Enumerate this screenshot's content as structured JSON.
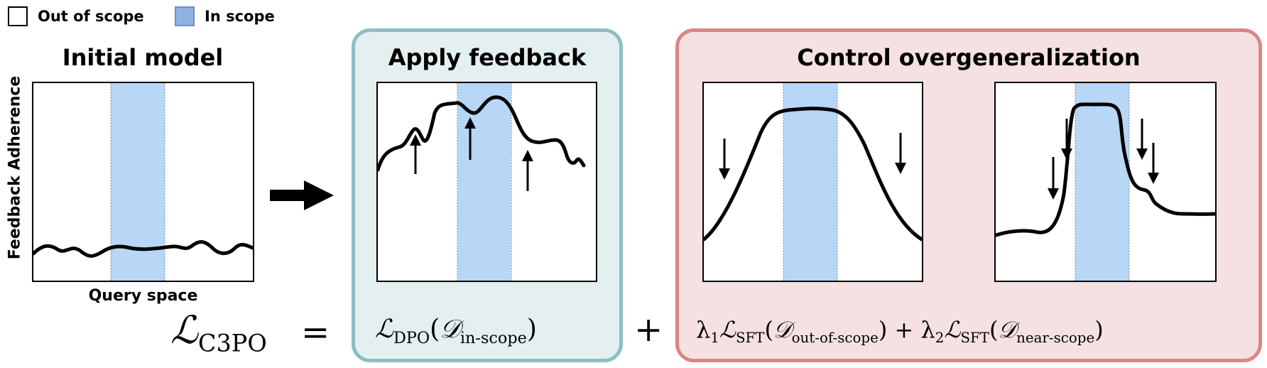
{
  "legend": {
    "out_of_scope": "Out of scope",
    "in_scope": "In scope"
  },
  "panels": {
    "initial": {
      "title": "Initial model",
      "y_label": "Feedback Adherence",
      "x_label": "Query space"
    },
    "apply": {
      "title": "Apply feedback"
    },
    "control": {
      "title": "Control overgeneralization"
    }
  },
  "formula": {
    "lhs_symbol": "ℒ",
    "lhs_sub": "C3PO",
    "equals": "=",
    "dpo_symbol": "ℒ",
    "dpo_sub": "DPO",
    "dpo_open": "(",
    "dpo_data_symbol": "𝒟",
    "dpo_data_sub": "in-scope",
    "dpo_close": ")",
    "plus": "+",
    "lambda1": "λ",
    "lambda1_sub": "1",
    "sft1_symbol": "ℒ",
    "sft1_sub": "SFT",
    "sft1_open": "(",
    "sft1_data_symbol": "𝒟",
    "sft1_data_sub": "out-of-scope",
    "sft1_close": ")",
    "inner_plus": "+",
    "lambda2": "λ",
    "lambda2_sub": "2",
    "sft2_symbol": "ℒ",
    "sft2_sub": "SFT",
    "sft2_open": "(",
    "sft2_data_symbol": "𝒟",
    "sft2_data_sub": "near-scope",
    "sft2_close": ")"
  },
  "colors": {
    "in_scope_band": "#b8d6f5",
    "apply_bg": "#e4efef",
    "apply_border": "#8cbec2",
    "control_bg": "#f5e1e1",
    "control_border": "#d98685"
  },
  "icons": {
    "transition": "right-arrow-icon",
    "increase": "up-arrow-icon",
    "decrease": "down-arrow-icon"
  }
}
